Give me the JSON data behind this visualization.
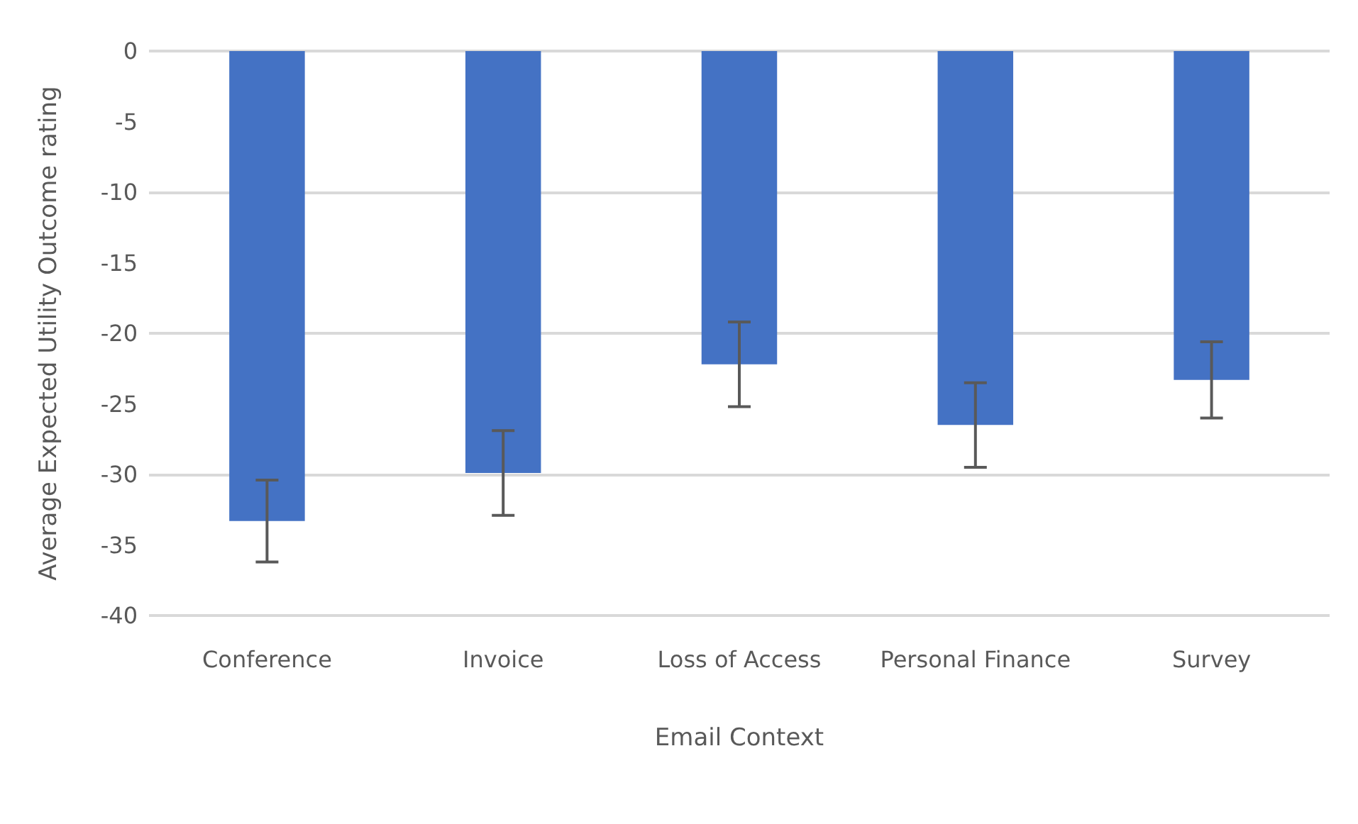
{
  "chart_data": {
    "type": "bar",
    "xlabel": "Email Context",
    "ylabel": "Average Expected Utility Outcome rating",
    "categories": [
      "Conference",
      "Invoice",
      "Loss of Access",
      "Personal Finance",
      "Survey"
    ],
    "values": [
      -33.3,
      -29.9,
      -22.2,
      -26.5,
      -23.3
    ],
    "errors": [
      2.9,
      3.0,
      3.0,
      3.0,
      2.7
    ],
    "color": "#4472c4",
    "ylim": [
      -40,
      0
    ],
    "yticks": [
      -40,
      -35,
      -30,
      -25,
      -20,
      -15,
      -10,
      -5,
      0
    ],
    "grid": "y"
  }
}
